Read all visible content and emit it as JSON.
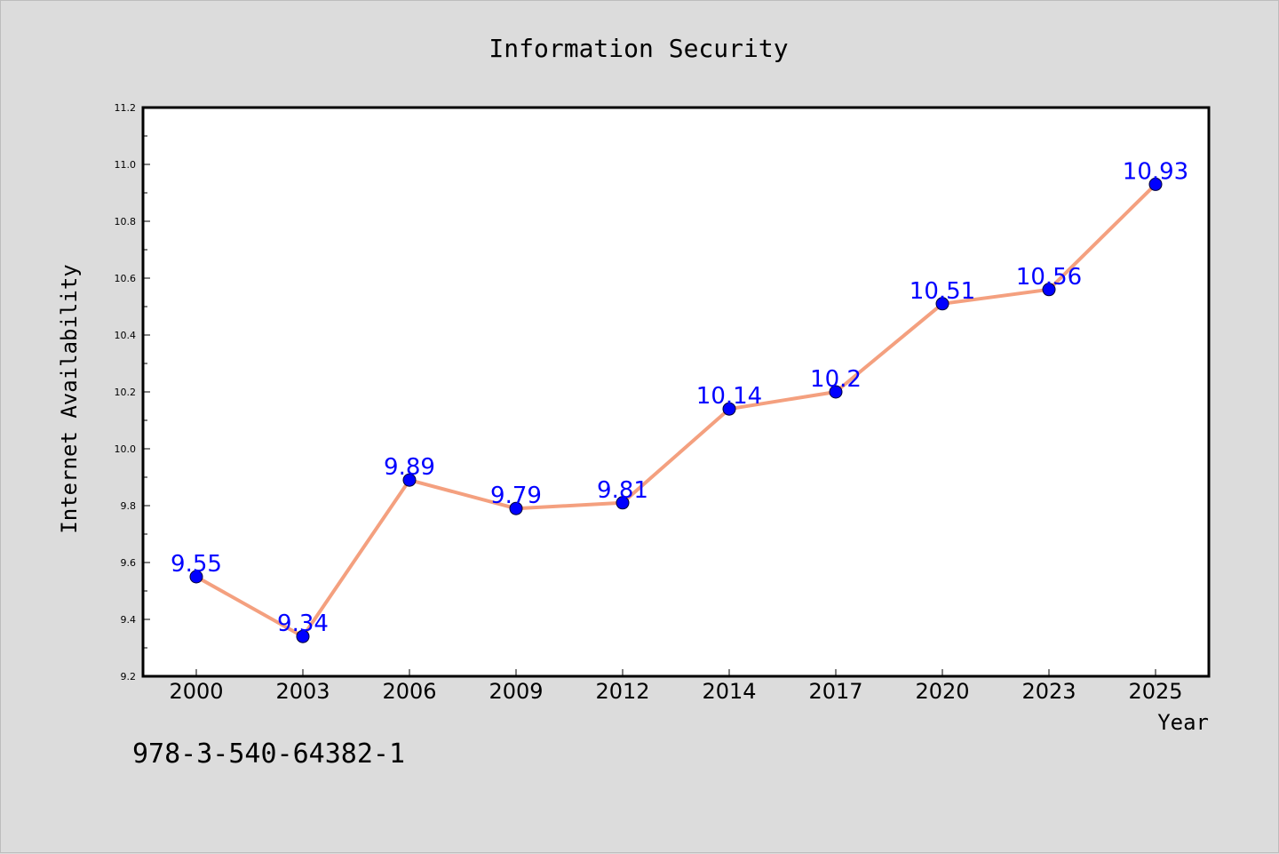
{
  "chart_data": {
    "type": "line",
    "title": "Information Security",
    "xlabel": "Year",
    "ylabel": "Internet Availability",
    "categories": [
      "2000",
      "2003",
      "2006",
      "2009",
      "2012",
      "2014",
      "2017",
      "2020",
      "2023",
      "2025"
    ],
    "series": [
      {
        "values": [
          9.55,
          9.34,
          9.89,
          9.79,
          9.81,
          10.14,
          10.2,
          10.51,
          10.56,
          10.93
        ]
      }
    ],
    "data_labels": [
      "9.55",
      "9.34",
      "9.89",
      "9.79",
      "9.81",
      "10.14",
      "10.2",
      "10.51",
      "10.56",
      "10.93"
    ],
    "ylim": [
      9.2,
      11.2
    ],
    "yticks": [
      9.2,
      9.4,
      9.6,
      9.8,
      10.0,
      10.2,
      10.4,
      10.6,
      10.8,
      11.0,
      11.2
    ],
    "ytick_labels": [
      "9.2",
      "9.4",
      "9.6",
      "9.8",
      "10.0",
      "10.2",
      "10.4",
      "10.6",
      "10.8",
      "11.0",
      "11.2"
    ],
    "grid": false,
    "legend": "none",
    "colors": {
      "line": "#f4a07f",
      "marker": "#0000ff",
      "data_label": "#0000ff",
      "plot_background": "#ffffff",
      "figure_background": "#dcdcdc"
    }
  },
  "footer": {
    "text": "978-3-540-64382-1"
  }
}
